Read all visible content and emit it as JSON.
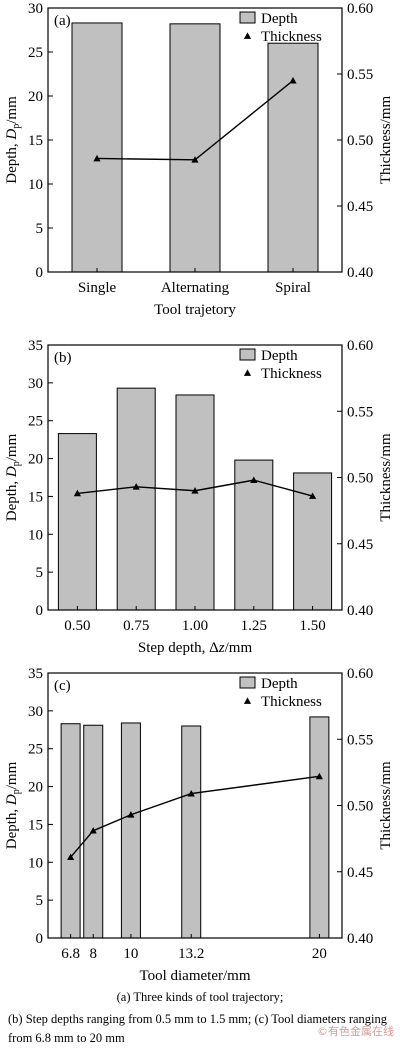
{
  "chart_data": [
    {
      "type": "bar",
      "panel_label": "(a)",
      "categories": [
        "Single",
        "Alternating",
        "Spiral"
      ],
      "x_positions": null,
      "xlim": null,
      "series": [
        {
          "name": "Depth",
          "kind": "bar",
          "axis": "left",
          "values": [
            28.3,
            28.2,
            26.0
          ]
        },
        {
          "name": "Thickness",
          "kind": "line",
          "axis": "right",
          "values": [
            0.486,
            0.485,
            0.545
          ]
        }
      ],
      "xlabel": "Tool trajetory",
      "ylabel_left": "Depth, D_p/mm",
      "ylabel_right": "Thickness/mm",
      "ylim_left": [
        0,
        30
      ],
      "yticks_left": [
        "0",
        "5",
        "10",
        "15",
        "20",
        "25",
        "30"
      ],
      "ylim_right": [
        0.4,
        0.6
      ],
      "yticks_right": [
        "0.40",
        "0.45",
        "0.50",
        "0.55",
        "0.60"
      ],
      "legend": [
        "Depth",
        "Thickness"
      ],
      "legend_position": "top-right",
      "grid": false
    },
    {
      "type": "bar",
      "panel_label": "(b)",
      "categories": [
        "0.50",
        "0.75",
        "1.00",
        "1.25",
        "1.50"
      ],
      "x_positions": null,
      "xlim": null,
      "series": [
        {
          "name": "Depth",
          "kind": "bar",
          "axis": "left",
          "values": [
            23.3,
            29.3,
            28.4,
            19.8,
            18.1
          ]
        },
        {
          "name": "Thickness",
          "kind": "line",
          "axis": "right",
          "values": [
            0.488,
            0.493,
            0.49,
            0.498,
            0.486
          ]
        }
      ],
      "xlabel": "Step depth, Δz/mm",
      "ylabel_left": "Depth, D_p/mm",
      "ylabel_right": "Thickness/mm",
      "ylim_left": [
        0,
        35
      ],
      "yticks_left": [
        "0",
        "5",
        "10",
        "15",
        "20",
        "25",
        "30",
        "35"
      ],
      "ylim_right": [
        0.4,
        0.6
      ],
      "yticks_right": [
        "0.40",
        "0.45",
        "0.50",
        "0.55",
        "0.60"
      ],
      "legend": [
        "Depth",
        "Thickness"
      ],
      "legend_position": "top-right",
      "grid": false
    },
    {
      "type": "bar",
      "panel_label": "(c)",
      "categories": [
        "6.8",
        "8",
        "10",
        "13.2",
        "20"
      ],
      "x_positions": [
        6.8,
        8,
        10,
        13.2,
        20
      ],
      "xlim": [
        5.6,
        21.2
      ],
      "series": [
        {
          "name": "Depth",
          "kind": "bar",
          "axis": "left",
          "values": [
            28.3,
            28.1,
            28.4,
            28.0,
            29.2
          ]
        },
        {
          "name": "Thickness",
          "kind": "line",
          "axis": "right",
          "values": [
            0.461,
            0.481,
            0.493,
            0.509,
            0.522
          ]
        }
      ],
      "xlabel": "Tool diameter/mm",
      "ylabel_left": "Depth, D_p/mm",
      "ylabel_right": "Thickness/mm",
      "ylim_left": [
        0,
        35
      ],
      "yticks_left": [
        "0",
        "5",
        "10",
        "15",
        "20",
        "25",
        "30",
        "35"
      ],
      "ylim_right": [
        0.4,
        0.6
      ],
      "yticks_right": [
        "0.40",
        "0.45",
        "0.50",
        "0.55",
        "0.60"
      ],
      "legend": [
        "Depth",
        "Thickness"
      ],
      "legend_position": "top-right",
      "grid": false
    }
  ],
  "caption": {
    "line1": "(a) Three kinds of tool trajectory;",
    "line2": "(b) Step depths ranging from 0.5 mm to 1.5 mm; (c) Tool diameters ranging from 6.8 mm to 20 mm"
  },
  "watermark": "©有色金属在线",
  "colors": {
    "bar_fill": "#c0c0c0",
    "line": "#000000",
    "axis": "#000000"
  }
}
